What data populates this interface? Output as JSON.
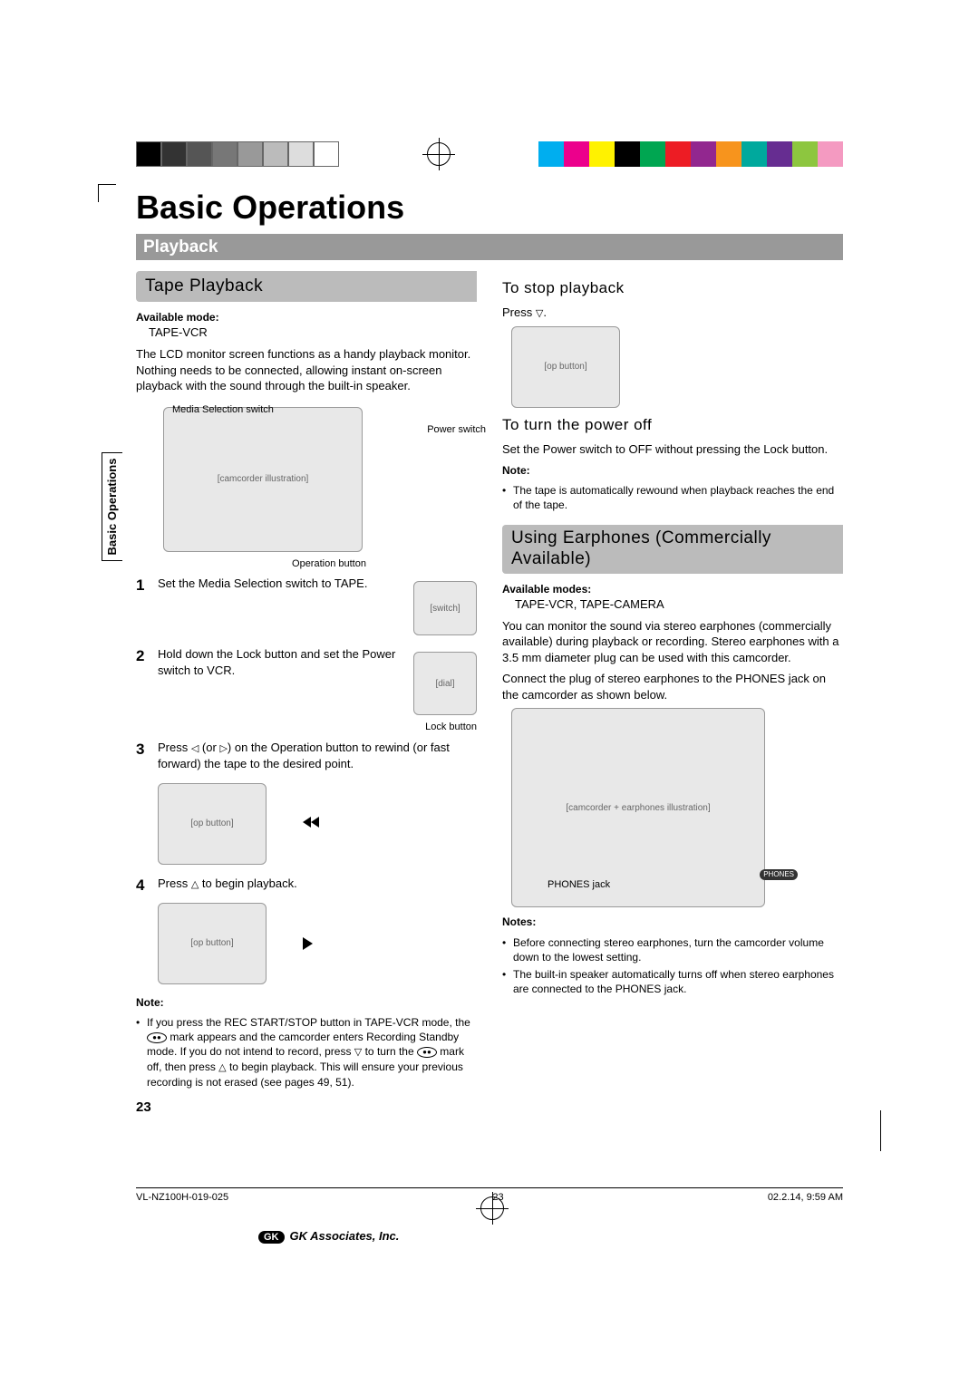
{
  "registration": {
    "gray_shades": [
      "#000000",
      "#333333",
      "#555555",
      "#777777",
      "#999999",
      "#bbbbbb",
      "#dddddd",
      "#ffffff"
    ],
    "color_swatches": [
      "#00aeef",
      "#ec008c",
      "#fff200",
      "#000000",
      "#00a651",
      "#ed1c24",
      "#92278f",
      "#f7941d",
      "#00a99d",
      "#662d91",
      "#8dc63f",
      "#f49ac1"
    ]
  },
  "header": {
    "main": "Basic Operations",
    "sub": "Playback"
  },
  "left": {
    "side_tab": "Basic Operations",
    "section": "Tape Playback",
    "avail_mode_label": "Available mode:",
    "avail_mode_val": "TAPE-VCR",
    "intro": "The LCD monitor screen functions as a handy playback monitor. Nothing needs to be connected, allowing instant on-screen playback with the sound through the built-in speaker.",
    "labels": {
      "media_switch": "Media Selection switch",
      "power_switch": "Power switch",
      "operation_button": "Operation button",
      "lock_button": "Lock button"
    },
    "steps": {
      "s1": "Set the Media Selection switch to TAPE.",
      "s2": "Hold down the Lock button and set the Power switch to VCR.",
      "s3_pre": "Press ",
      "s3_mid": " (or ",
      "s3_post": ") on the Operation button to rewind (or fast forward) the tape to the desired point.",
      "s4_pre": "Press ",
      "s4_post": " to begin playback."
    },
    "note_label": "Note:",
    "note_body_1": "If you press the REC START/STOP button in TAPE-VCR mode, the ",
    "note_body_2": " mark appears and the camcorder enters Recording Standby mode. If you do not intend to record, press ",
    "note_body_3": " to turn the ",
    "note_body_4": " mark off, then press ",
    "note_body_5": " to begin playback. This will ensure your previous recording is not erased (see pages 49, 51).",
    "page_num": "23"
  },
  "right": {
    "stop_head": "To stop playback",
    "stop_body_pre": "Press ",
    "stop_body_post": ".",
    "power_head": "To turn the power off",
    "power_body": "Set the Power switch to OFF without pressing the Lock button.",
    "power_note_label": "Note:",
    "power_note_bullet": "The tape is automatically rewound when playback reaches the end of the tape.",
    "earphone_section": "Using Earphones (Commercially Available)",
    "avail_modes_label": "Available modes:",
    "avail_modes_val": "TAPE-VCR, TAPE-CAMERA",
    "ear_p1": "You can monitor the sound via stereo earphones (commercially available) during playback or recording. Stereo earphones with a 3.5 mm diameter plug can be used with this camcorder.",
    "ear_p2": "Connect the plug of stereo earphones to the PHONES jack on the camcorder as shown below.",
    "phones_label": "PHONES jack",
    "phones_badge": "PHONES",
    "notes_label": "Notes:",
    "notes_b1": "Before connecting stereo earphones, turn the camcorder volume down to the lowest setting.",
    "notes_b2": "The built-in speaker automatically turns off when stereo earphones are connected to the PHONES jack."
  },
  "footer": {
    "left": "VL-NZ100H-019-025",
    "mid": "23",
    "right": "02.2.14, 9:59 AM",
    "brand": "GK Associates, Inc."
  },
  "figures": {
    "camcorder_main": "[camcorder illustration]",
    "switch_small": "[switch]",
    "dial_small": "[dial]",
    "opbutton_1": "[op button]",
    "opbutton_2": "[op button]",
    "opbutton_3": "[op button]",
    "camcorder_phones": "[camcorder + earphones illustration]"
  },
  "style": {
    "header_gray": "#bbbbbb",
    "subhead_gray": "#999999",
    "diagram_bg": "#e8e8e8"
  }
}
